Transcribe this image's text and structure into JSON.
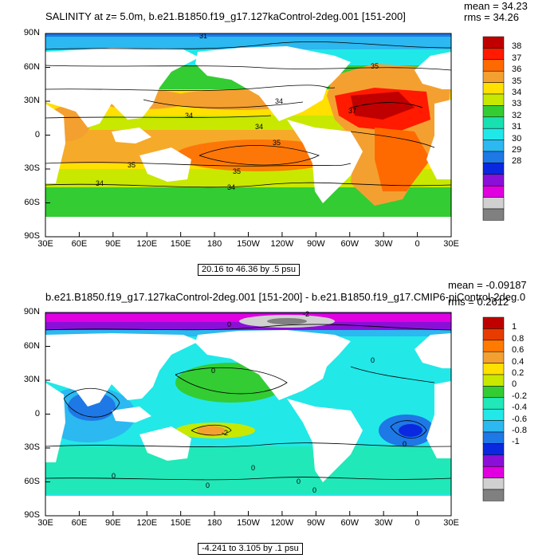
{
  "panel1": {
    "title": "SALINITY at z=   5.0m, b.e21.B1850.f19_g17.127kaControl-2deg.001 [151-200]",
    "mean": "mean = 34.23",
    "rms": "rms = 34.26",
    "range": "20.16 to 46.36 by .5 psu",
    "contour_labels": [
      "31",
      "35",
      "34",
      "34",
      "34",
      "35",
      "35",
      "35",
      "34",
      "34",
      "37"
    ],
    "colorbar": {
      "labels": [
        "38",
        "37",
        "36",
        "35",
        "34",
        "33",
        "32",
        "31",
        "30",
        "29",
        "28"
      ],
      "colors": [
        "#c00000",
        "#ff1a00",
        "#ff6a00",
        "#f4a030",
        "#ffe000",
        "#c8e800",
        "#33cc33",
        "#19e0b0",
        "#21e8e8",
        "#2cb8f0",
        "#1e78e6",
        "#0a28e0",
        "#8a10d8",
        "#e000e0",
        "#d0d0d0",
        "#808080"
      ]
    }
  },
  "panel2": {
    "title": "b.e21.B1850.f19_g17.127kaControl-2deg.001 [151-200] - b.e21.B1850.f19_g17.CMIP6-piControl-2deg.0",
    "mean": "mean = -0.09187",
    "rms": "rms = 0.2612",
    "range": "-4.241 to 3.105 by .1 psu",
    "contour_labels": [
      "0",
      "0",
      "0",
      "-2",
      "0",
      "0",
      "0",
      "0",
      "0",
      "0",
      "-2"
    ],
    "colorbar": {
      "labels": [
        "1",
        "0.8",
        "0.6",
        "0.4",
        "0.2",
        "0",
        "-0.2",
        "-0.4",
        "-0.6",
        "-0.8",
        "-1"
      ],
      "colors": [
        "#c00000",
        "#e63c00",
        "#ff7a00",
        "#f4a030",
        "#ffe000",
        "#c8e800",
        "#33cc33",
        "#21e8b8",
        "#22e8e8",
        "#2cb8f0",
        "#1e78e6",
        "#0a28e0",
        "#8a10d8",
        "#e000e0",
        "#d0d0d0",
        "#808080"
      ]
    }
  },
  "axes": {
    "lat_labels": [
      "90N",
      "60N",
      "30N",
      "0",
      "30S",
      "60S",
      "90S"
    ],
    "lon_labels": [
      "30E",
      "60E",
      "90E",
      "120E",
      "150E",
      "180",
      "150W",
      "120W",
      "90W",
      "60W",
      "30W",
      "0",
      "30E"
    ]
  }
}
